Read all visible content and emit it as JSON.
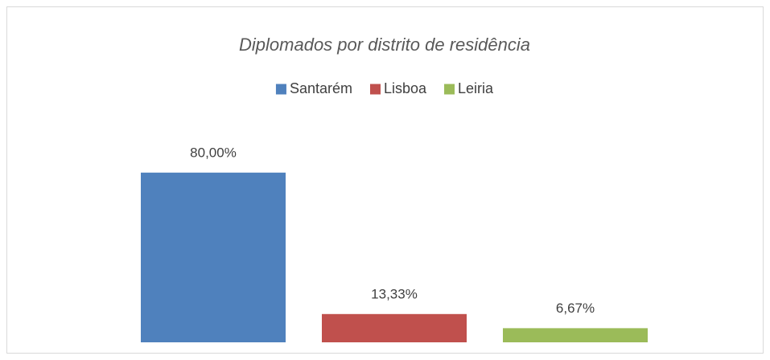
{
  "chart_data": {
    "type": "bar",
    "title": "Diplomados por distrito de residência",
    "categories": [
      null
    ],
    "series": [
      {
        "name": "Santarém",
        "color": "#4f81bd",
        "values": [
          80
        ],
        "value_labels": [
          "80,00%"
        ]
      },
      {
        "name": "Lisboa",
        "color": "#c0504d",
        "values": [
          13.33
        ],
        "value_labels": [
          "13,33%"
        ]
      },
      {
        "name": "Leiria",
        "color": "#9bbb59",
        "values": [
          6.67
        ],
        "value_labels": [
          "6,67%"
        ]
      }
    ],
    "legend": "top"
  }
}
